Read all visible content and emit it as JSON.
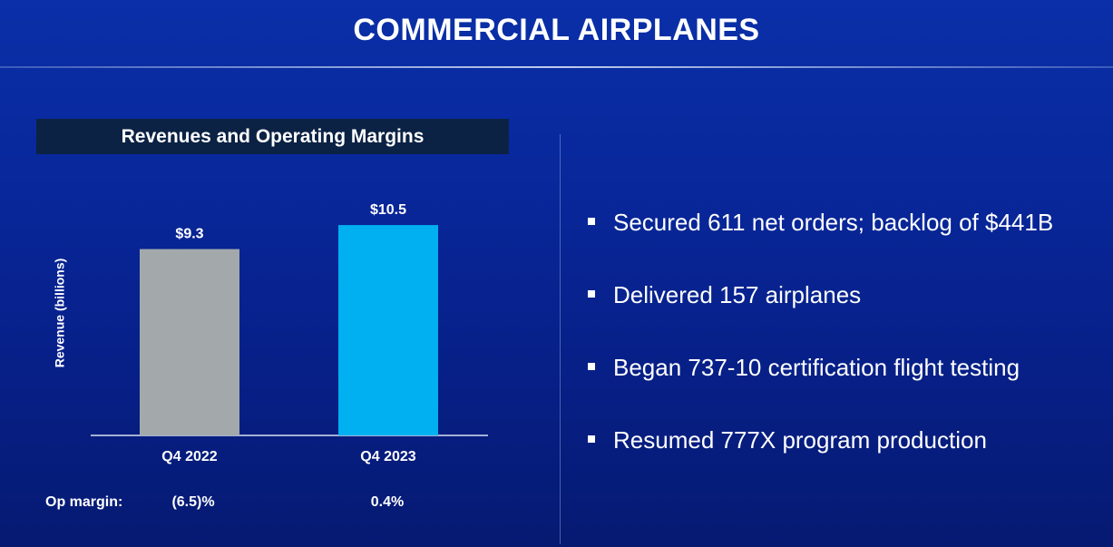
{
  "slide": {
    "title": "COMMERCIAL AIRPLANES"
  },
  "chart_header": "Revenues and Operating Margins",
  "chart_data": {
    "type": "bar",
    "title": "Revenues and Operating Margins",
    "categories": [
      "Q4 2022",
      "Q4 2023"
    ],
    "values": [
      9.3,
      10.5
    ],
    "value_labels": [
      "$9.3",
      "$10.5"
    ],
    "bar_colors": [
      "#a3a9ab",
      "#00b0f0"
    ],
    "ylabel": "Revenue (billions)",
    "xlabel": "",
    "ylim": [
      0,
      11.5
    ],
    "grid": false,
    "footer_row": {
      "label": "Op margin:",
      "values": [
        "(6.5)%",
        "0.4%"
      ]
    }
  },
  "bullets": [
    {
      "text": "Secured 611 net orders; backlog of $441B"
    },
    {
      "text": "Delivered 157 airplanes"
    },
    {
      "text": "Began 737-10 certification flight testing"
    },
    {
      "text": "Resumed 777X program production"
    }
  ]
}
